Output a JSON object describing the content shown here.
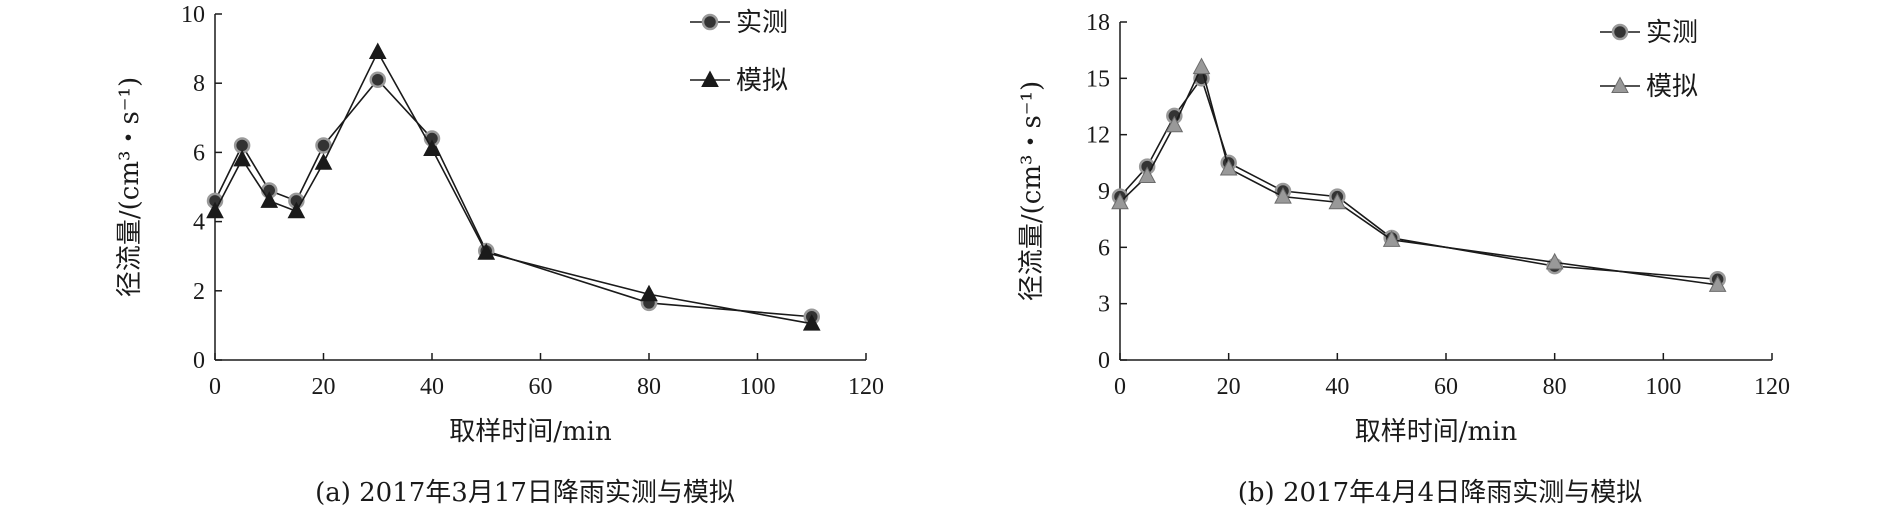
{
  "charts": [
    {
      "caption": "(a) 2017年3月17日降雨实测与模拟",
      "chart_data": {
        "type": "line",
        "xlabel": "取样时间/min",
        "ylabel": "径流量/(cm³・s⁻¹)",
        "xlim": [
          0,
          120
        ],
        "ylim": [
          0,
          10
        ],
        "xticks": [
          0,
          20,
          40,
          60,
          80,
          100,
          120
        ],
        "yticks": [
          0,
          2,
          4,
          6,
          8,
          10
        ],
        "grid": false,
        "legend_position": "top-right",
        "series": [
          {
            "name": "实测",
            "marker": "circle",
            "color": "#1a1a1a",
            "x": [
              0,
              5,
              10,
              15,
              20,
              30,
              40,
              50,
              80,
              110
            ],
            "y": [
              4.6,
              6.2,
              4.9,
              4.6,
              6.2,
              8.1,
              6.4,
              3.15,
              1.65,
              1.25
            ]
          },
          {
            "name": "模拟",
            "marker": "triangle",
            "color": "#1a1a1a",
            "x": [
              0,
              5,
              10,
              15,
              20,
              30,
              40,
              50,
              80,
              110
            ],
            "y": [
              4.3,
              5.8,
              4.6,
              4.3,
              5.7,
              8.9,
              6.1,
              3.1,
              1.9,
              1.05
            ]
          }
        ]
      }
    },
    {
      "caption": "(b) 2017年4月4日降雨实测与模拟",
      "chart_data": {
        "type": "line",
        "xlabel": "取样时间/min",
        "ylabel": "径流量/(cm³・s⁻¹)",
        "xlim": [
          0,
          120
        ],
        "ylim": [
          0,
          18
        ],
        "xticks": [
          0,
          20,
          40,
          60,
          80,
          100,
          120
        ],
        "yticks": [
          0,
          3,
          6,
          9,
          12,
          15,
          18
        ],
        "grid": false,
        "legend_position": "top-right",
        "series": [
          {
            "name": "实测",
            "marker": "circle",
            "color": "#1a1a1a",
            "x": [
              0,
              5,
              10,
              15,
              20,
              30,
              40,
              50,
              80,
              110
            ],
            "y": [
              8.7,
              10.3,
              13.0,
              15.0,
              10.5,
              9.0,
              8.7,
              6.5,
              5.0,
              4.3
            ]
          },
          {
            "name": "模拟",
            "marker": "triangle",
            "color": "#999999",
            "x": [
              0,
              5,
              10,
              15,
              20,
              30,
              40,
              50,
              80,
              110
            ],
            "y": [
              8.4,
              9.8,
              12.5,
              15.6,
              10.2,
              8.7,
              8.4,
              6.4,
              5.2,
              4.0
            ]
          }
        ]
      }
    }
  ]
}
